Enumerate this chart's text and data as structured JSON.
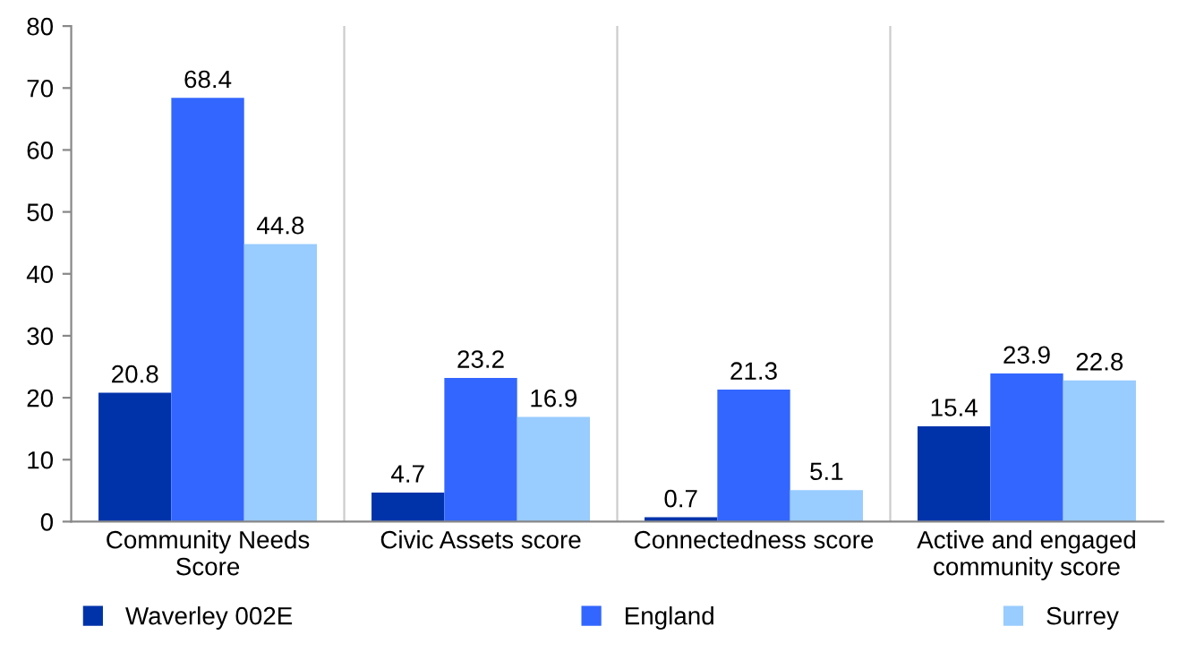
{
  "chart_data": {
    "type": "bar",
    "categories": [
      "Community Needs\nScore",
      "Civic Assets score",
      "Connectedness score",
      "Active and engaged\ncommunity score"
    ],
    "series": [
      {
        "name": "Waverley 002E",
        "color": "#0033aa",
        "values": [
          20.8,
          4.7,
          0.7,
          15.4
        ]
      },
      {
        "name": "England",
        "color": "#3366ff",
        "values": [
          68.4,
          23.2,
          21.3,
          23.9
        ]
      },
      {
        "name": "Surrey",
        "color": "#99ccff",
        "values": [
          44.8,
          16.9,
          5.1,
          22.8
        ]
      }
    ],
    "ylim": [
      0,
      80
    ],
    "yticks": [
      0,
      10,
      20,
      30,
      40,
      50,
      60,
      70,
      80
    ],
    "grid": "x",
    "legend": "bottom",
    "data_labels": true
  }
}
